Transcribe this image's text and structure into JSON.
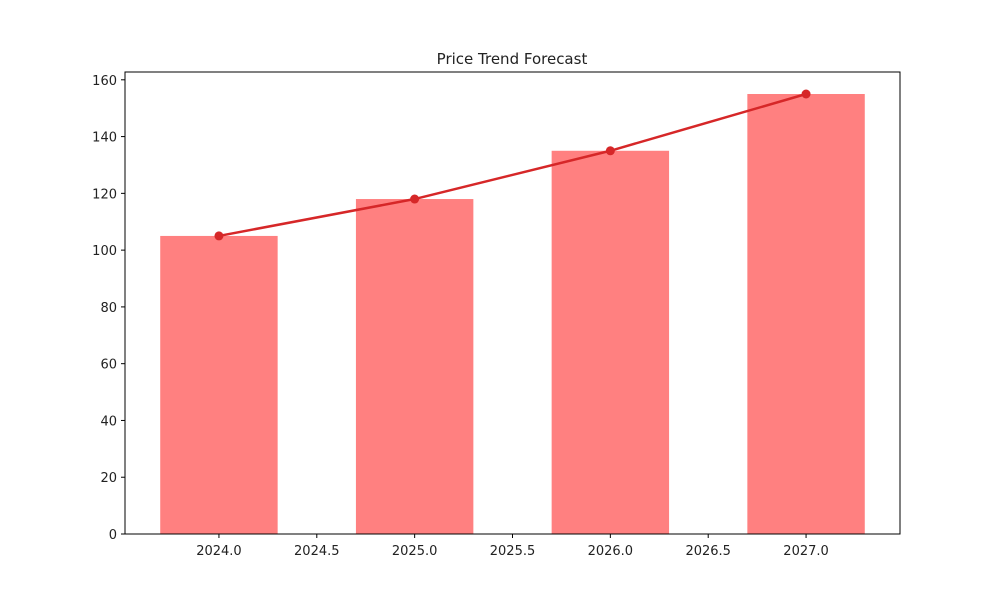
{
  "chart_data": {
    "type": "bar+line",
    "title": "Price Trend Forecast",
    "xlabel": "",
    "ylabel": "",
    "x": [
      2024,
      2025,
      2026,
      2027
    ],
    "bars": {
      "values": [
        105,
        118,
        135,
        155
      ],
      "color": "#ff8080",
      "width": 0.6
    },
    "line": {
      "values": [
        105,
        118,
        135,
        155
      ],
      "color": "#d62728",
      "marker": "circle"
    },
    "xlim": [
      2023.52,
      2027.48
    ],
    "ylim": [
      0,
      162.75
    ],
    "xticks": [
      2024.0,
      2024.5,
      2025.0,
      2025.5,
      2026.0,
      2026.5,
      2027.0
    ],
    "xtick_labels": [
      "2024.0",
      "2024.5",
      "2025.0",
      "2025.5",
      "2026.0",
      "2026.5",
      "2027.0"
    ],
    "yticks": [
      0,
      20,
      40,
      60,
      80,
      100,
      120,
      140,
      160
    ],
    "ytick_labels": [
      "0",
      "20",
      "40",
      "60",
      "80",
      "100",
      "120",
      "140",
      "160"
    ],
    "grid": false,
    "legend": "none"
  }
}
